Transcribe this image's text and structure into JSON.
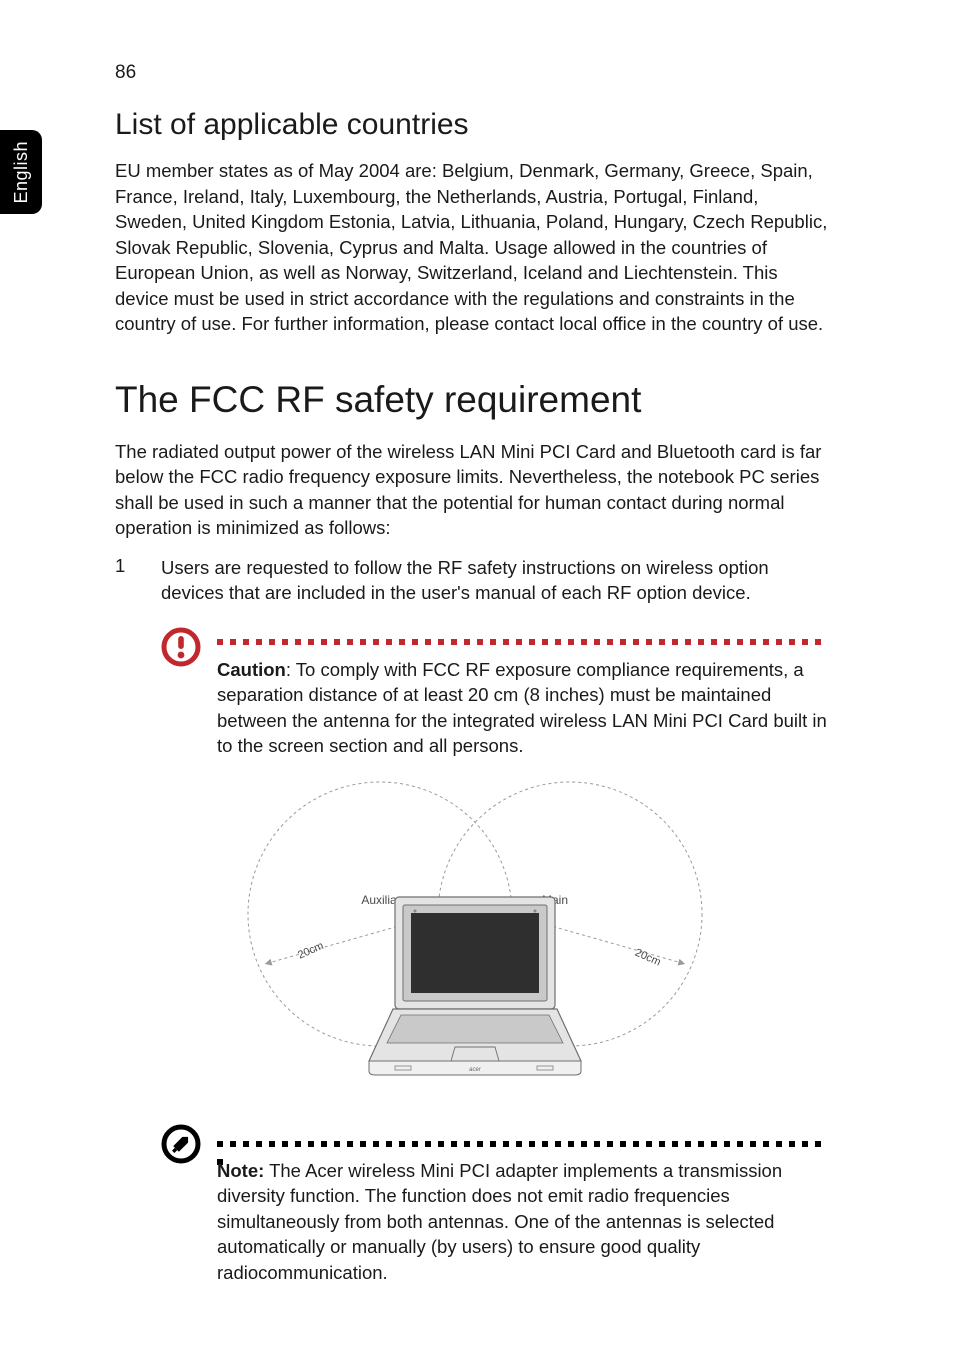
{
  "page": {
    "number": "86",
    "side_tab": "English"
  },
  "section1": {
    "heading": "List of applicable countries",
    "body": "EU member states as of May 2004 are: Belgium, Denmark, Germany, Greece, Spain, France, Ireland, Italy, Luxembourg, the Netherlands, Austria, Portugal, Finland, Sweden, United Kingdom Estonia, Latvia, Lithuania, Poland, Hungary, Czech Republic, Slovak Republic, Slovenia, Cyprus and Malta. Usage allowed in the countries of European Union, as well as Norway, Switzerland, Iceland and Liechtenstein. This device must be used in strict accordance with the regulations and constraints in the country of use. For further information, please contact local office in the country of use."
  },
  "section2": {
    "heading": "The FCC RF safety requirement",
    "body": "The radiated output power of the wireless LAN Mini PCI Card and Bluetooth card is far below the FCC radio frequency exposure limits. Nevertheless, the notebook PC series shall be used in such a manner that the potential for human contact during normal operation is minimized as follows:",
    "list_item_num": "1",
    "list_item_text": "Users are requested to follow the RF safety instructions on wireless option devices that are included in the user's manual of each RF option device."
  },
  "caution": {
    "lead": "Caution",
    "text": ": To comply with FCC RF exposure compliance requirements, a separation distance of at least 20 cm (8 inches) must be maintained between the antenna for the integrated wireless LAN Mini PCI Card built in to the screen section and all persons."
  },
  "diagram": {
    "label_left": "Auxiliary",
    "label_right": "Main",
    "radius_label": "20cm",
    "colors": {
      "dashed": "#9a9a9a",
      "laptop_stroke": "#6f6f6f",
      "laptop_fill_outer": "#e4e4e4",
      "laptop_fill_inner": "#c9c9c9",
      "screen_fill": "#2f2f2f",
      "text": "#4a4a4a"
    }
  },
  "note": {
    "lead": "Note:",
    "text": " The Acer wireless Mini PCI adapter implements a transmission diversity function. The function does not emit radio frequencies simultaneously from both antennas. One of the antennas is selected automatically or manually (by users) to ensure good quality radiocommunication."
  },
  "style": {
    "caution_color": "#c1282d",
    "note_color": "#000000"
  }
}
